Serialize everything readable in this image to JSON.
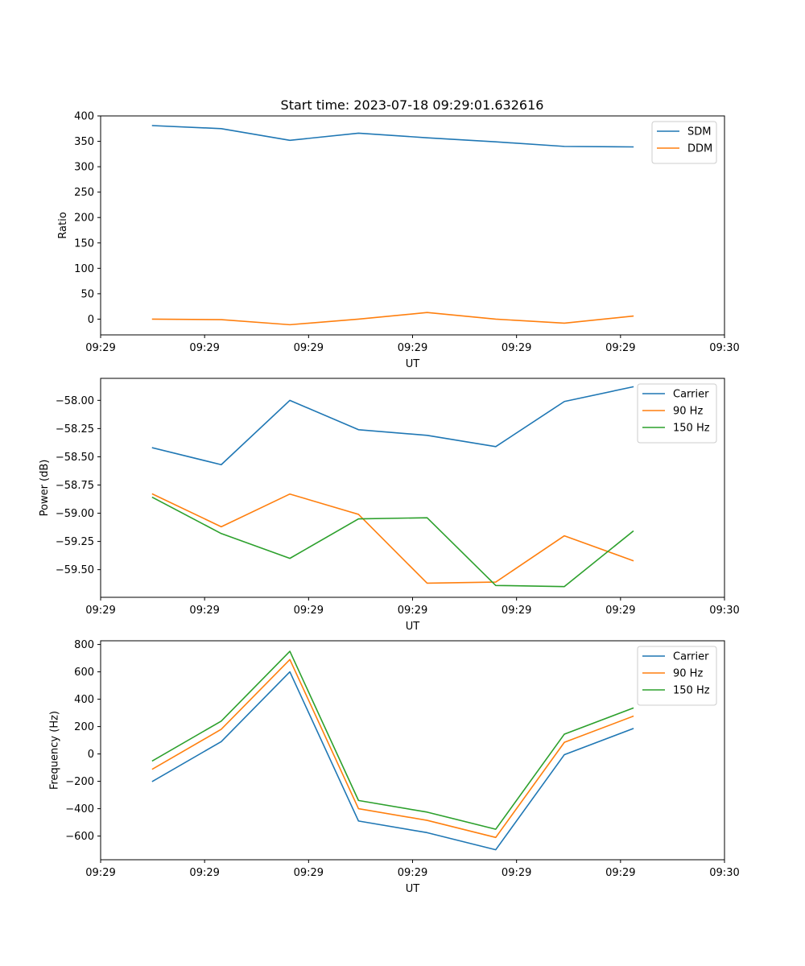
{
  "figure": {
    "title": "Start time: 2023-07-18 09:29:01.632616"
  },
  "colors": {
    "series1": "#1f77b4",
    "series2": "#ff7f0e",
    "series3": "#2ca02c",
    "legend_border": "#cccccc"
  },
  "chart_data": [
    {
      "type": "line",
      "title": "Start time: 2023-07-18 09:29:01.632616",
      "xlabel": "UT",
      "ylabel": "Ratio",
      "x": [
        0.5,
        1.16,
        1.82,
        2.48,
        3.14,
        3.8,
        4.46,
        5.12
      ],
      "xlim": [
        0,
        6
      ],
      "x_ticks": [
        0,
        1,
        2,
        3,
        4,
        5,
        6
      ],
      "x_tick_labels": [
        "09:29",
        "09:29",
        "09:29",
        "09:29",
        "09:29",
        "09:29",
        "09:30"
      ],
      "ylim": [
        -31,
        400
      ],
      "y_ticks": [
        0,
        50,
        100,
        150,
        200,
        250,
        300,
        350,
        400
      ],
      "y_tick_labels": [
        "0",
        "50",
        "100",
        "150",
        "200",
        "250",
        "300",
        "350",
        "400"
      ],
      "grid": false,
      "legend": "top-right",
      "series": [
        {
          "name": "SDM",
          "color": "#1f77b4",
          "values": [
            381,
            375,
            352,
            366,
            357,
            349,
            340,
            339
          ]
        },
        {
          "name": "DDM",
          "color": "#ff7f0e",
          "values": [
            0,
            -1,
            -11,
            0,
            13,
            0,
            -8,
            6
          ]
        }
      ]
    },
    {
      "type": "line",
      "xlabel": "UT",
      "ylabel": "Power (dB)",
      "x": [
        0.5,
        1.16,
        1.82,
        2.48,
        3.14,
        3.8,
        4.46,
        5.12
      ],
      "xlim": [
        0,
        6
      ],
      "x_ticks": [
        0,
        1,
        2,
        3,
        4,
        5,
        6
      ],
      "x_tick_labels": [
        "09:29",
        "09:29",
        "09:29",
        "09:29",
        "09:29",
        "09:29",
        "09:30"
      ],
      "ylim": [
        -59.745,
        -57.805
      ],
      "y_ticks": [
        -58.0,
        -58.25,
        -58.5,
        -58.75,
        -59.0,
        -59.25,
        -59.5
      ],
      "y_tick_labels": [
        "−58.00",
        "−58.25",
        "−58.50",
        "−58.75",
        "−59.00",
        "−59.25",
        "−59.50"
      ],
      "grid": false,
      "legend": "top-right",
      "series": [
        {
          "name": "Carrier",
          "color": "#1f77b4",
          "values": [
            -58.42,
            -58.57,
            -58.0,
            -58.26,
            -58.31,
            -58.41,
            -58.01,
            -57.88
          ]
        },
        {
          "name": "90 Hz",
          "color": "#ff7f0e",
          "values": [
            -58.83,
            -59.12,
            -58.83,
            -59.01,
            -59.62,
            -59.61,
            -59.2,
            -59.42
          ]
        },
        {
          "name": "150 Hz",
          "color": "#2ca02c",
          "values": [
            -58.86,
            -59.18,
            -59.4,
            -59.05,
            -59.04,
            -59.64,
            -59.65,
            -59.16
          ]
        }
      ]
    },
    {
      "type": "line",
      "xlabel": "UT",
      "ylabel": "Frequency (Hz)",
      "x": [
        0.5,
        1.16,
        1.82,
        2.48,
        3.14,
        3.8,
        4.46,
        5.12
      ],
      "xlim": [
        0,
        6
      ],
      "x_ticks": [
        0,
        1,
        2,
        3,
        4,
        5,
        6
      ],
      "x_tick_labels": [
        "09:29",
        "09:29",
        "09:29",
        "09:29",
        "09:29",
        "09:29",
        "09:30"
      ],
      "ylim": [
        -773,
        827
      ],
      "y_ticks": [
        -600,
        -400,
        -200,
        0,
        200,
        400,
        600,
        800
      ],
      "y_tick_labels": [
        "−600",
        "−400",
        "−200",
        "0",
        "200",
        "400",
        "600",
        "800"
      ],
      "grid": false,
      "legend": "top-right",
      "series": [
        {
          "name": "Carrier",
          "color": "#1f77b4",
          "values": [
            -200,
            90,
            600,
            -490,
            -575,
            -700,
            -5,
            185
          ]
        },
        {
          "name": "90 Hz",
          "color": "#ff7f0e",
          "values": [
            -110,
            180,
            690,
            -400,
            -485,
            -610,
            85,
            275
          ]
        },
        {
          "name": "150 Hz",
          "color": "#2ca02c",
          "values": [
            -50,
            240,
            750,
            -340,
            -425,
            -550,
            145,
            335
          ]
        }
      ]
    }
  ]
}
